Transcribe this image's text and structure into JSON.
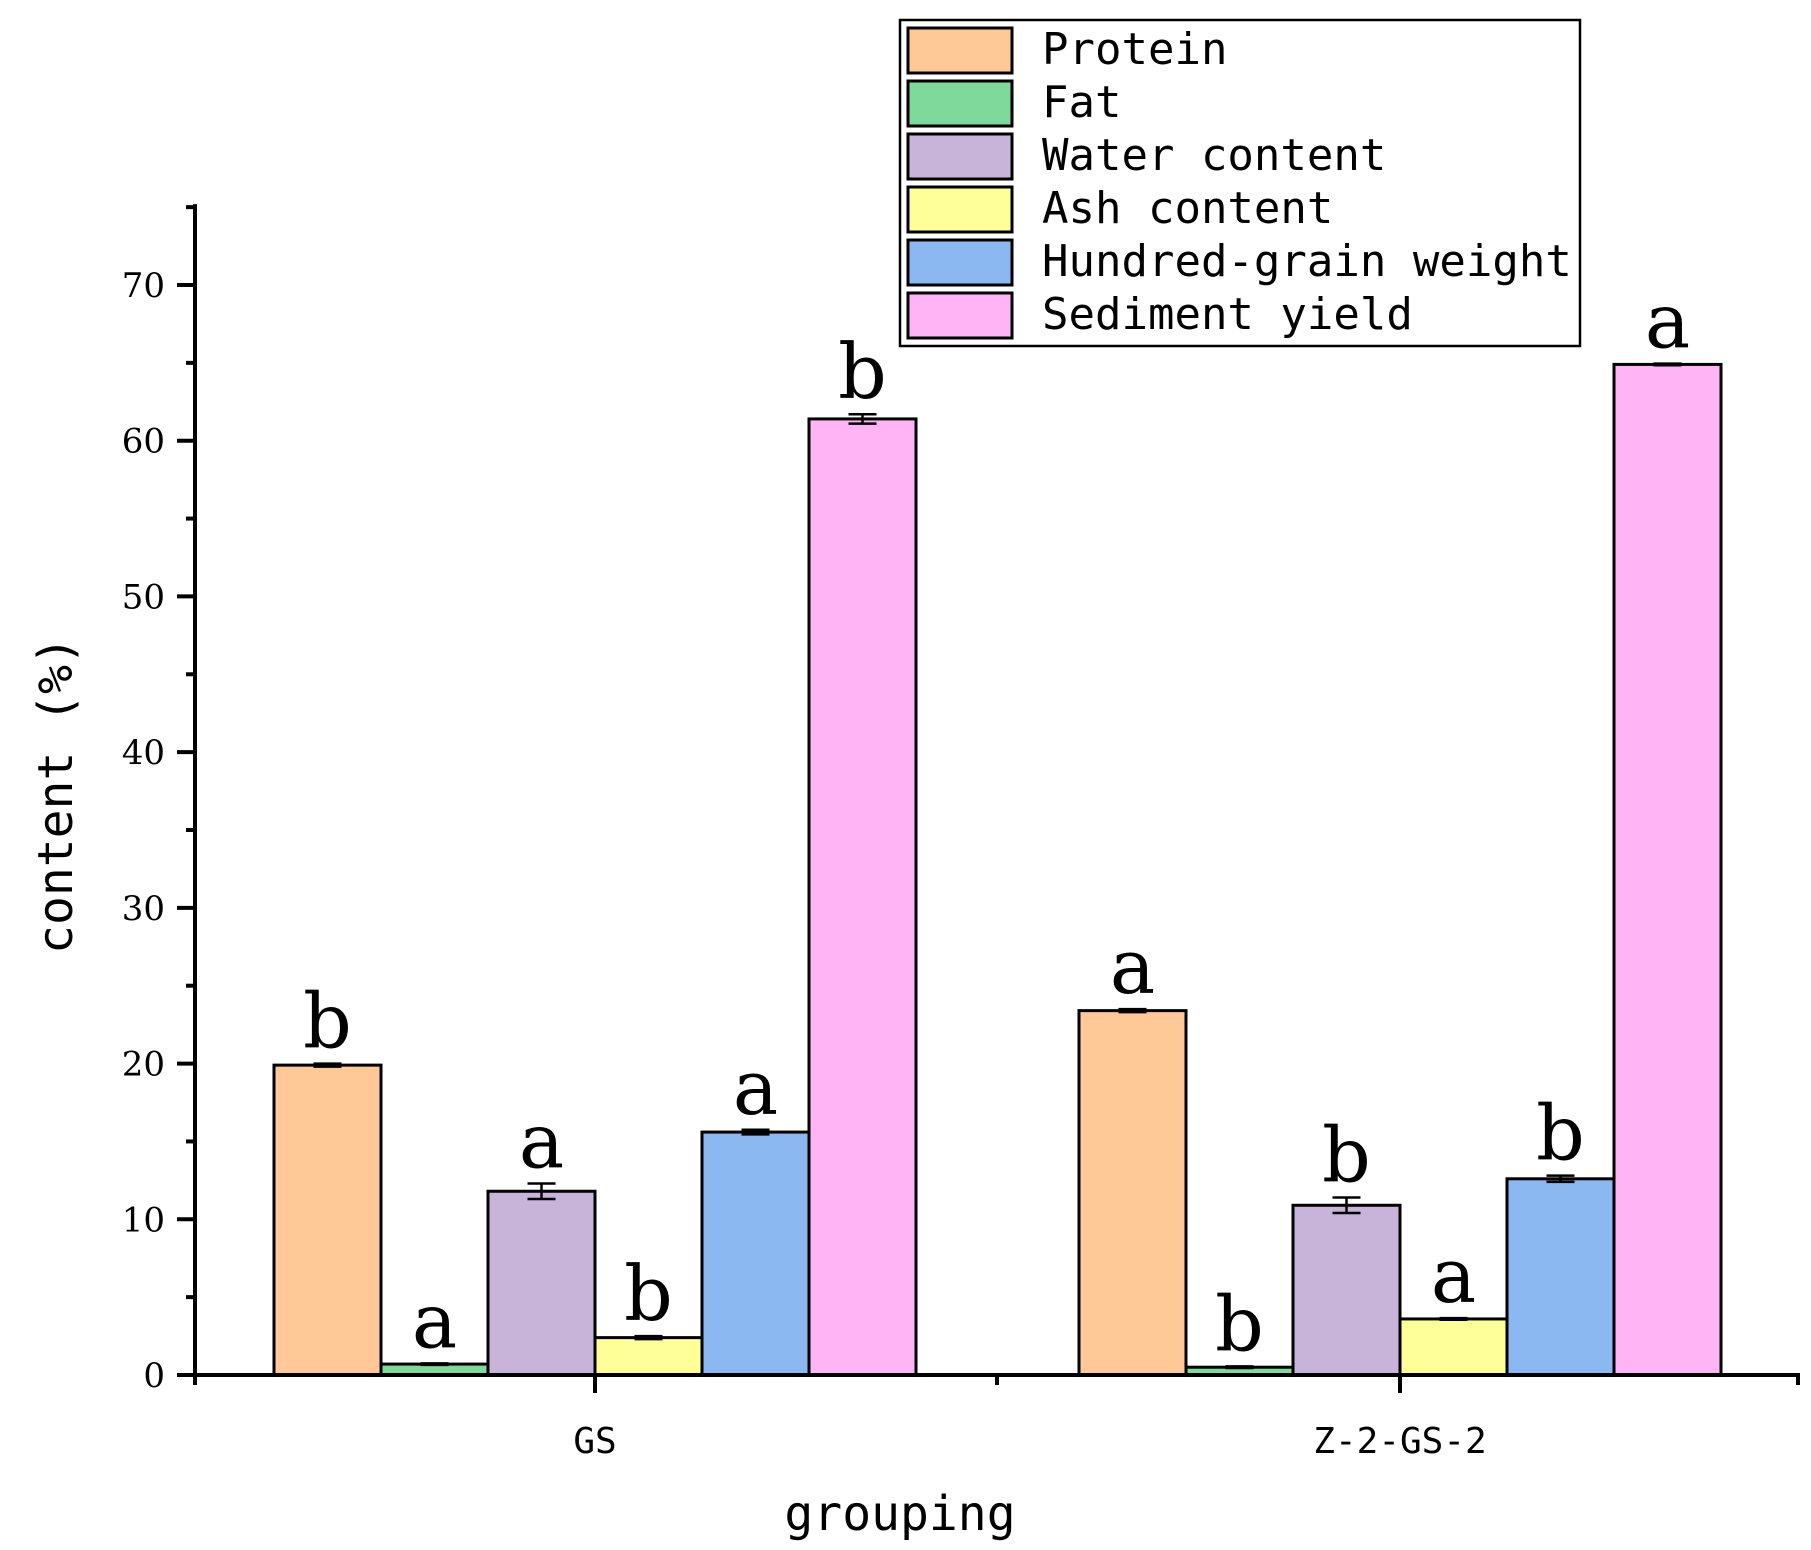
{
  "chart_data": {
    "type": "bar",
    "title": "",
    "xlabel": "grouping",
    "ylabel": "content (%)",
    "ylim": [
      0,
      75
    ],
    "y_ticks": [
      0,
      10,
      20,
      30,
      40,
      50,
      60,
      70
    ],
    "y_tick_labels": [
      "0",
      "10",
      "20",
      "30",
      "40",
      "50",
      "60",
      "70"
    ],
    "categories": [
      "GS",
      "Z-2-GS-2"
    ],
    "legend_position": "top-right",
    "series": [
      {
        "name": "Protein",
        "color": "#FFC896",
        "values": [
          19.9,
          23.4
        ],
        "errors": [
          0.1,
          0.1
        ],
        "letters": [
          "b",
          "a"
        ]
      },
      {
        "name": "Fat",
        "color": "#7FD99A",
        "values": [
          0.7,
          0.5
        ],
        "errors": [
          0.05,
          0.05
        ],
        "letters": [
          "a",
          "b"
        ]
      },
      {
        "name": "Water content",
        "color": "#C8B4D8",
        "values": [
          11.8,
          10.9
        ],
        "errors": [
          0.5,
          0.5
        ],
        "letters": [
          "a",
          "b"
        ]
      },
      {
        "name": "Ash content",
        "color": "#FFFF99",
        "values": [
          2.4,
          3.6
        ],
        "errors": [
          0.1,
          0.05
        ],
        "letters": [
          "b",
          "a"
        ]
      },
      {
        "name": "Hundred-grain weight",
        "color": "#8CB8F2",
        "values": [
          15.6,
          12.6
        ],
        "errors": [
          0.15,
          0.2
        ],
        "letters": [
          "a",
          "b"
        ]
      },
      {
        "name": "Sediment yield",
        "color": "#FFB4F5",
        "values": [
          61.4,
          64.9
        ],
        "errors": [
          0.3,
          0.05
        ],
        "letters": [
          "b",
          "a"
        ]
      }
    ]
  }
}
